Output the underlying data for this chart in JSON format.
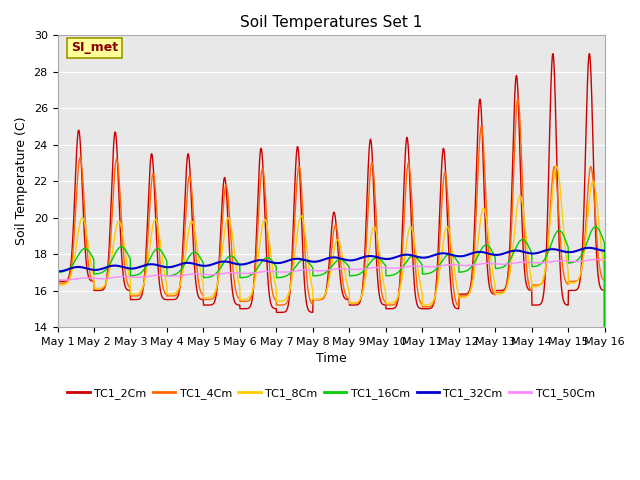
{
  "title": "Soil Temperatures Set 1",
  "xlabel": "Time",
  "ylabel": "Soil Temperature (C)",
  "ylim": [
    14,
    30
  ],
  "xlim": [
    0,
    15
  ],
  "background_color": "#e8e8e8",
  "series_order": [
    "TC1_2Cm",
    "TC1_4Cm",
    "TC1_8Cm",
    "TC1_16Cm",
    "TC1_32Cm",
    "TC1_50Cm"
  ],
  "series": {
    "TC1_2Cm": {
      "color": "#cc0000",
      "lw": 1.0
    },
    "TC1_4Cm": {
      "color": "#ff6600",
      "lw": 1.0
    },
    "TC1_8Cm": {
      "color": "#ffcc00",
      "lw": 1.0
    },
    "TC1_16Cm": {
      "color": "#00cc00",
      "lw": 1.0
    },
    "TC1_32Cm": {
      "color": "#0000cc",
      "lw": 1.5
    },
    "TC1_50Cm": {
      "color": "#ff88ff",
      "lw": 1.0
    }
  },
  "annotation_text": "SI_met",
  "annotation_box_facecolor": "#ffff99",
  "annotation_box_edgecolor": "#999900",
  "annotation_text_color": "#880000",
  "tick_label_fontsize": 8,
  "axis_label_fontsize": 9,
  "title_fontsize": 11,
  "legend_fontsize": 8,
  "grid_color": "#ffffff",
  "fig_facecolor": "#ffffff",
  "ax_facecolor": "#e8e8e8"
}
